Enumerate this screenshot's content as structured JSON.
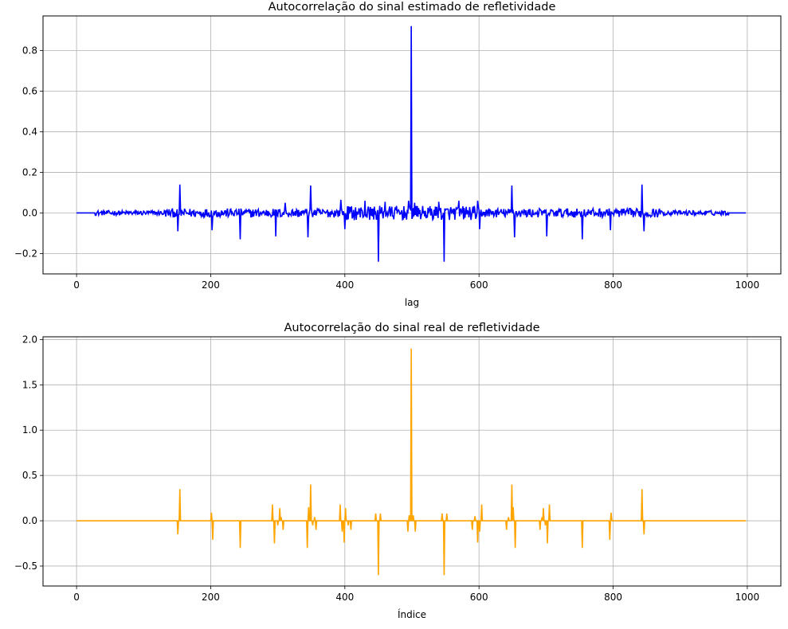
{
  "chart_data": [
    {
      "type": "line",
      "title": "Autocorrelação do sinal estimado de refletividade",
      "xlabel": "lag",
      "ylabel": "",
      "xlim": [
        -50,
        1050
      ],
      "ylim": [
        -0.3,
        0.97
      ],
      "xticks": [
        0,
        200,
        400,
        600,
        800,
        1000
      ],
      "yticks": [
        -0.2,
        0.0,
        0.2,
        0.4,
        0.6,
        0.8
      ],
      "ytick_labels": [
        "−0.2",
        "0.0",
        "0.2",
        "0.4",
        "0.6",
        "0.8"
      ],
      "grid": true,
      "color": "#0000ff",
      "noise_ranges": [
        {
          "from": 28,
          "to": 130,
          "amplitude": 0.012
        },
        {
          "from": 130,
          "to": 400,
          "amplitude": 0.022
        },
        {
          "from": 400,
          "to": 600,
          "amplitude": 0.035
        },
        {
          "from": 600,
          "to": 870,
          "amplitude": 0.022
        },
        {
          "from": 870,
          "to": 972,
          "amplitude": 0.012
        }
      ],
      "spikes": [
        {
          "x": 151,
          "y": -0.09
        },
        {
          "x": 154,
          "y": 0.14
        },
        {
          "x": 202,
          "y": -0.085
        },
        {
          "x": 244,
          "y": -0.13
        },
        {
          "x": 297,
          "y": -0.115
        },
        {
          "x": 311,
          "y": 0.05
        },
        {
          "x": 345,
          "y": -0.12
        },
        {
          "x": 349,
          "y": 0.135
        },
        {
          "x": 394,
          "y": 0.065
        },
        {
          "x": 400,
          "y": -0.08
        },
        {
          "x": 430,
          "y": 0.06
        },
        {
          "x": 450,
          "y": -0.24
        },
        {
          "x": 460,
          "y": 0.055
        },
        {
          "x": 495,
          "y": 0.06
        },
        {
          "x": 499,
          "y": 0.92
        },
        {
          "x": 504,
          "y": 0.05
        },
        {
          "x": 540,
          "y": 0.055
        },
        {
          "x": 548,
          "y": -0.24
        },
        {
          "x": 570,
          "y": 0.06
        },
        {
          "x": 598,
          "y": 0.06
        },
        {
          "x": 601,
          "y": -0.08
        },
        {
          "x": 649,
          "y": 0.135
        },
        {
          "x": 653,
          "y": -0.12
        },
        {
          "x": 701,
          "y": -0.115
        },
        {
          "x": 754,
          "y": -0.13
        },
        {
          "x": 796,
          "y": -0.085
        },
        {
          "x": 843,
          "y": 0.14
        },
        {
          "x": 846,
          "y": -0.09
        }
      ],
      "n_points": 999
    },
    {
      "type": "line",
      "title": "Autocorrelação do sinal real de refletividade",
      "xlabel": "Índice",
      "ylabel": "",
      "xlim": [
        -50,
        1050
      ],
      "ylim": [
        -0.72,
        2.03
      ],
      "xticks": [
        0,
        200,
        400,
        600,
        800,
        1000
      ],
      "yticks": [
        -0.5,
        0.0,
        0.5,
        1.0,
        1.5,
        2.0
      ],
      "ytick_labels": [
        "−0.5",
        "0.0",
        "0.5",
        "1.0",
        "1.5",
        "2.0"
      ],
      "grid": true,
      "color": "#ffa500",
      "spikes": [
        {
          "x": 151,
          "y": -0.15
        },
        {
          "x": 154,
          "y": 0.35
        },
        {
          "x": 201,
          "y": 0.09
        },
        {
          "x": 203,
          "y": -0.21
        },
        {
          "x": 244,
          "y": -0.3
        },
        {
          "x": 292,
          "y": 0.18
        },
        {
          "x": 295,
          "y": -0.25
        },
        {
          "x": 300,
          "y": -0.05
        },
        {
          "x": 303,
          "y": 0.14
        },
        {
          "x": 305,
          "y": 0.04
        },
        {
          "x": 308,
          "y": -0.1
        },
        {
          "x": 344,
          "y": -0.3
        },
        {
          "x": 346,
          "y": 0.15
        },
        {
          "x": 349,
          "y": 0.4
        },
        {
          "x": 352,
          "y": -0.05
        },
        {
          "x": 355,
          "y": 0.04
        },
        {
          "x": 357,
          "y": -0.1
        },
        {
          "x": 393,
          "y": 0.18
        },
        {
          "x": 396,
          "y": -0.12
        },
        {
          "x": 399,
          "y": -0.24
        },
        {
          "x": 401,
          "y": 0.14
        },
        {
          "x": 405,
          "y": -0.05
        },
        {
          "x": 409,
          "y": -0.1
        },
        {
          "x": 446,
          "y": 0.08
        },
        {
          "x": 450,
          "y": -0.6
        },
        {
          "x": 453,
          "y": 0.08
        },
        {
          "x": 494,
          "y": -0.12
        },
        {
          "x": 496,
          "y": 0.06
        },
        {
          "x": 499,
          "y": 1.9
        },
        {
          "x": 502,
          "y": 0.06
        },
        {
          "x": 505,
          "y": -0.12
        },
        {
          "x": 545,
          "y": 0.08
        },
        {
          "x": 548,
          "y": -0.6
        },
        {
          "x": 552,
          "y": 0.08
        },
        {
          "x": 590,
          "y": -0.1
        },
        {
          "x": 594,
          "y": 0.05
        },
        {
          "x": 598,
          "y": -0.24
        },
        {
          "x": 601,
          "y": -0.12
        },
        {
          "x": 604,
          "y": 0.18
        },
        {
          "x": 641,
          "y": -0.1
        },
        {
          "x": 644,
          "y": 0.04
        },
        {
          "x": 649,
          "y": 0.4
        },
        {
          "x": 651,
          "y": 0.15
        },
        {
          "x": 654,
          "y": -0.3
        },
        {
          "x": 691,
          "y": -0.1
        },
        {
          "x": 694,
          "y": 0.04
        },
        {
          "x": 696,
          "y": 0.14
        },
        {
          "x": 699,
          "y": -0.05
        },
        {
          "x": 702,
          "y": -0.25
        },
        {
          "x": 705,
          "y": 0.18
        },
        {
          "x": 754,
          "y": -0.3
        },
        {
          "x": 795,
          "y": -0.21
        },
        {
          "x": 797,
          "y": 0.09
        },
        {
          "x": 843,
          "y": 0.35
        },
        {
          "x": 846,
          "y": -0.15
        }
      ],
      "n_points": 999
    }
  ]
}
